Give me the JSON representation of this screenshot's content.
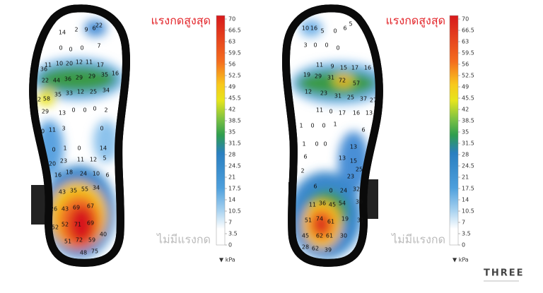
{
  "panels": [
    {
      "max_label": "แรงกดสูงสุด",
      "min_label": "ไม่มีแรงกด",
      "readings": [
        14,
        2,
        9,
        6,
        22,
        0,
        0,
        0,
        7,
        11,
        10,
        20,
        12,
        11,
        17,
        36,
        22,
        44,
        36,
        29,
        29,
        35,
        16,
        32,
        58,
        35,
        33,
        12,
        25,
        34,
        29,
        13,
        0,
        0,
        0,
        2,
        10,
        11,
        3,
        0,
        0,
        1,
        0,
        14,
        20,
        23,
        11,
        12,
        5,
        16,
        18,
        24,
        10,
        6,
        43,
        35,
        55,
        34,
        26,
        43,
        69,
        67,
        52,
        52,
        71,
        69,
        40,
        51,
        72,
        59,
        48,
        75
      ]
    },
    {
      "max_label": "แรงกดสูงสุด",
      "min_label": "ไม่มีแรงกด",
      "readings": [
        10,
        16,
        5,
        0,
        6,
        5,
        3,
        0,
        0,
        0,
        11,
        9,
        15,
        17,
        16,
        19,
        29,
        31,
        72,
        57,
        12,
        23,
        31,
        25,
        37,
        27,
        11,
        0,
        17,
        16,
        13,
        1,
        0,
        0,
        1,
        6,
        1,
        0,
        0,
        13,
        6,
        13,
        15,
        25,
        2,
        23,
        6,
        0,
        24,
        32,
        11,
        36,
        45,
        54,
        30,
        51,
        74,
        61,
        19,
        45,
        62,
        61,
        30,
        31,
        28,
        62,
        39
      ]
    }
  ],
  "scale": {
    "ticks": [
      70,
      66.5,
      63,
      59.5,
      56,
      52.5,
      49,
      45.5,
      42,
      38.5,
      35,
      31.5,
      28,
      24.5,
      21,
      17.5,
      14,
      10.5,
      7,
      3.5,
      0
    ],
    "unit": "▼ kPa"
  },
  "logo": "THREE"
}
